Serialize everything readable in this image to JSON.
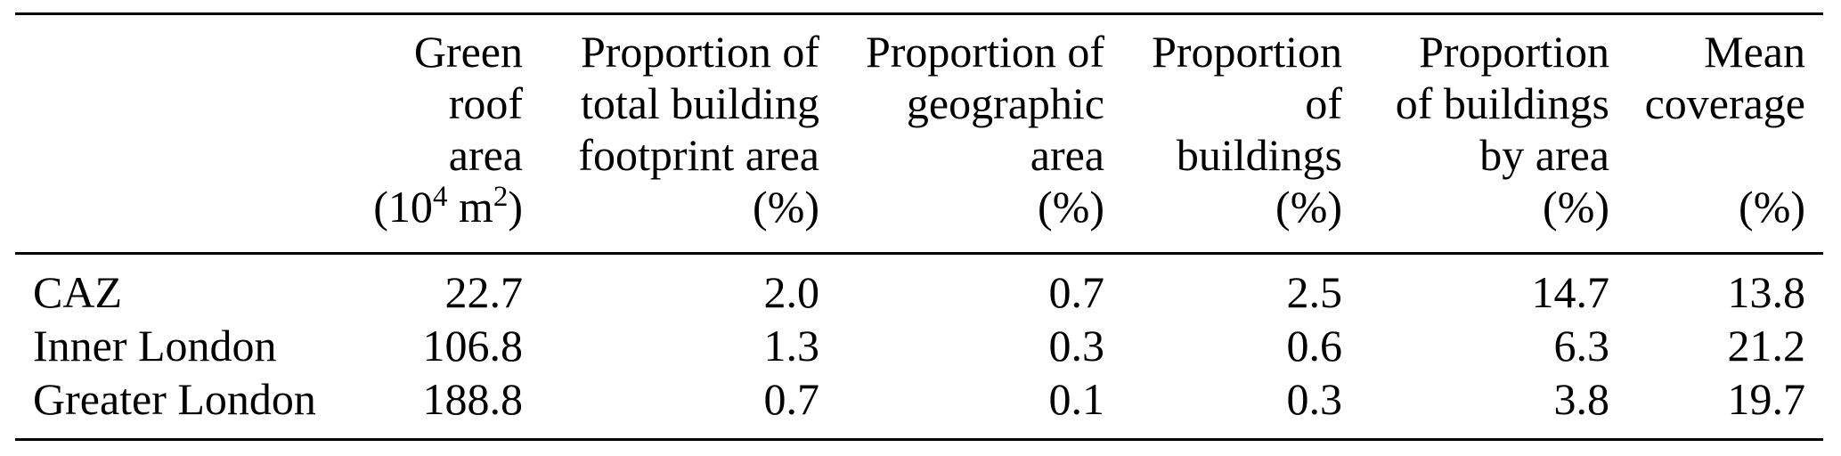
{
  "colors": {
    "text": "#000000",
    "rule": "#000000",
    "background": "#ffffff"
  },
  "table": {
    "row_label_header": "",
    "columns": [
      {
        "id": "green-roof-area",
        "lines": [
          [
            {
              "t": "Green"
            }
          ],
          [
            {
              "t": "roof"
            }
          ],
          [
            {
              "t": "area"
            }
          ],
          [
            {
              "t": "(10"
            },
            {
              "t": "4",
              "sup": true
            },
            {
              "t": " m"
            },
            {
              "t": "2",
              "sup": true
            },
            {
              "t": ")"
            }
          ]
        ]
      },
      {
        "id": "proportion-total-building-footprint-area",
        "lines": [
          [
            {
              "t": "Proportion of"
            }
          ],
          [
            {
              "t": "total building"
            }
          ],
          [
            {
              "t": "footprint area"
            }
          ],
          [
            {
              "t": "(%)"
            }
          ]
        ]
      },
      {
        "id": "proportion-geographic-area",
        "lines": [
          [
            {
              "t": "Proportion of"
            }
          ],
          [
            {
              "t": "geographic"
            }
          ],
          [
            {
              "t": "area"
            }
          ],
          [
            {
              "t": "(%)"
            }
          ]
        ]
      },
      {
        "id": "proportion-of-buildings",
        "lines": [
          [
            {
              "t": "Proportion"
            }
          ],
          [
            {
              "t": "of"
            }
          ],
          [
            {
              "t": "buildings"
            }
          ],
          [
            {
              "t": "(%)"
            }
          ]
        ]
      },
      {
        "id": "proportion-of-buildings-by-area",
        "lines": [
          [
            {
              "t": "Proportion"
            }
          ],
          [
            {
              "t": "of buildings"
            }
          ],
          [
            {
              "t": "by area"
            }
          ],
          [
            {
              "t": "(%)"
            }
          ]
        ]
      },
      {
        "id": "mean-coverage",
        "lines": [
          [
            {
              "t": "Mean"
            }
          ],
          [
            {
              "t": "coverage"
            }
          ],
          [
            {
              "t": ""
            }
          ],
          [
            {
              "t": "(%)"
            }
          ]
        ]
      }
    ],
    "rows": [
      {
        "label": "CAZ",
        "values": [
          "22.7",
          "2.0",
          "0.7",
          "2.5",
          "14.7",
          "13.8"
        ]
      },
      {
        "label": "Inner London",
        "values": [
          "106.8",
          "1.3",
          "0.3",
          "0.6",
          "6.3",
          "21.2"
        ]
      },
      {
        "label": "Greater London",
        "values": [
          "188.8",
          "0.7",
          "0.1",
          "0.3",
          "3.8",
          "19.7"
        ]
      }
    ]
  },
  "chart_data": {
    "type": "table",
    "title": "",
    "columns": [
      "Green roof area (10^4 m^2)",
      "Proportion of total building footprint area (%)",
      "Proportion of geographic area (%)",
      "Proportion of buildings (%)",
      "Proportion of buildings by area (%)",
      "Mean coverage (%)"
    ],
    "rows": [
      {
        "region": "CAZ",
        "values": [
          22.7,
          2.0,
          0.7,
          2.5,
          14.7,
          13.8
        ]
      },
      {
        "region": "Inner London",
        "values": [
          106.8,
          1.3,
          0.3,
          0.6,
          6.3,
          21.2
        ]
      },
      {
        "region": "Greater London",
        "values": [
          188.8,
          0.7,
          0.1,
          0.3,
          3.8,
          19.7
        ]
      }
    ]
  }
}
